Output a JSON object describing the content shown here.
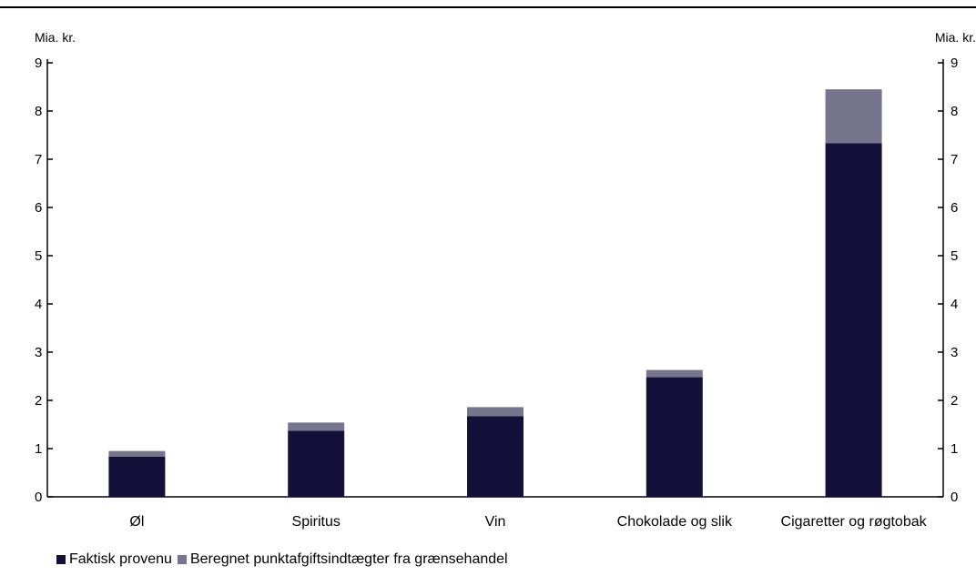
{
  "chart_data": {
    "type": "bar",
    "stacked": true,
    "title": "",
    "unit_left": "Mia. kr.",
    "unit_right": "Mia. kr.",
    "categories": [
      "Øl",
      "Spiritus",
      "Vin",
      "Chokolade og slik",
      "Cigaretter og røgtobak"
    ],
    "series": [
      {
        "name": "Faktisk provenu",
        "color": "#13113a",
        "values": [
          0.83,
          1.37,
          1.67,
          2.48,
          7.33
        ]
      },
      {
        "name": "Beregnet punktafgiftsindtægter fra grænsehandel",
        "color": "#77748d",
        "values": [
          0.12,
          0.17,
          0.19,
          0.15,
          1.12
        ]
      }
    ],
    "ylim": [
      0,
      9
    ],
    "yticks": [
      "0",
      "1",
      "2",
      "3",
      "4",
      "5",
      "6",
      "7",
      "8",
      "9"
    ],
    "grid": false,
    "legend_position": "bottom-left"
  }
}
